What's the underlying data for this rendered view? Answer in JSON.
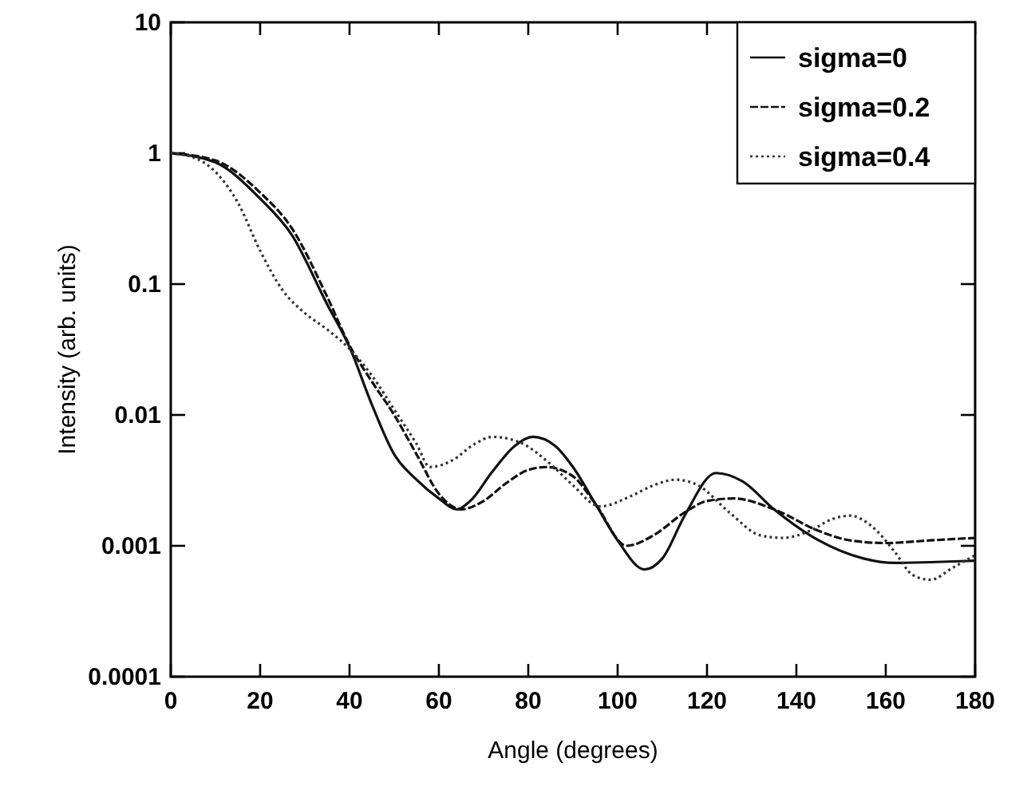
{
  "chart_data": {
    "type": "line",
    "xlabel": "Angle (degrees)",
    "ylabel": "Intensity (arb. units)",
    "log": "y",
    "xlim": [
      0,
      180
    ],
    "xticks": [
      0,
      20,
      40,
      60,
      80,
      100,
      120,
      140,
      160,
      180
    ],
    "ylim": [
      0.0001,
      10
    ],
    "yticks": [
      0.0001,
      0.001,
      0.01,
      0.1,
      1,
      10
    ],
    "grid": false,
    "legend": "top right",
    "marker": "none",
    "series": [
      {
        "name": "sigma=0",
        "color": "#111111",
        "line_style": "solid",
        "x": [
          0,
          10,
          20,
          27,
          35,
          40,
          45,
          50,
          55,
          60,
          64,
          67,
          72,
          77,
          81,
          86,
          90,
          95,
          100,
          106,
          110,
          115,
          122,
          128,
          135,
          145,
          155,
          162,
          170,
          180
        ],
        "values": [
          1,
          0.85,
          0.45,
          0.24,
          0.07,
          0.033,
          0.012,
          0.005,
          0.0032,
          0.0023,
          0.0019,
          0.0022,
          0.0037,
          0.0058,
          0.0068,
          0.0058,
          0.004,
          0.0021,
          0.0011,
          0.00066,
          0.0008,
          0.0017,
          0.0036,
          0.0031,
          0.0019,
          0.0011,
          0.0008,
          0.00074,
          0.00075,
          0.00077
        ]
      },
      {
        "name": "sigma=0.2",
        "color": "#111111",
        "line_style": "dashed",
        "x": [
          0,
          10,
          20,
          27,
          35,
          40,
          45,
          50,
          55,
          60,
          65,
          70,
          75,
          80,
          84,
          90,
          95,
          102,
          108,
          115,
          120,
          126,
          135,
          145,
          152,
          160,
          170,
          180
        ],
        "values": [
          1,
          0.88,
          0.5,
          0.27,
          0.08,
          0.034,
          0.018,
          0.01,
          0.005,
          0.0025,
          0.0019,
          0.0022,
          0.003,
          0.0038,
          0.004,
          0.0034,
          0.0021,
          0.001,
          0.0012,
          0.0018,
          0.0022,
          0.0023,
          0.0019,
          0.0013,
          0.0011,
          0.00105,
          0.0011,
          0.00115
        ]
      },
      {
        "name": "sigma=0.4",
        "color": "#333333",
        "line_style": "dotted",
        "x": [
          0,
          5,
          10,
          15,
          20,
          25,
          30,
          35,
          40,
          45,
          50,
          55,
          58,
          63,
          68,
          72,
          78,
          85,
          90,
          96,
          103,
          108,
          113,
          118,
          125,
          132,
          137,
          143,
          148,
          152,
          157,
          162,
          166,
          170,
          175,
          180
        ],
        "values": [
          1,
          0.93,
          0.72,
          0.42,
          0.18,
          0.09,
          0.06,
          0.045,
          0.032,
          0.02,
          0.011,
          0.006,
          0.004,
          0.0045,
          0.006,
          0.0068,
          0.0062,
          0.0042,
          0.0029,
          0.002,
          0.0024,
          0.0029,
          0.0032,
          0.0029,
          0.0018,
          0.0012,
          0.00115,
          0.0013,
          0.0016,
          0.0017,
          0.0014,
          0.0009,
          0.0006,
          0.00055,
          0.00068,
          0.00085
        ]
      }
    ]
  }
}
